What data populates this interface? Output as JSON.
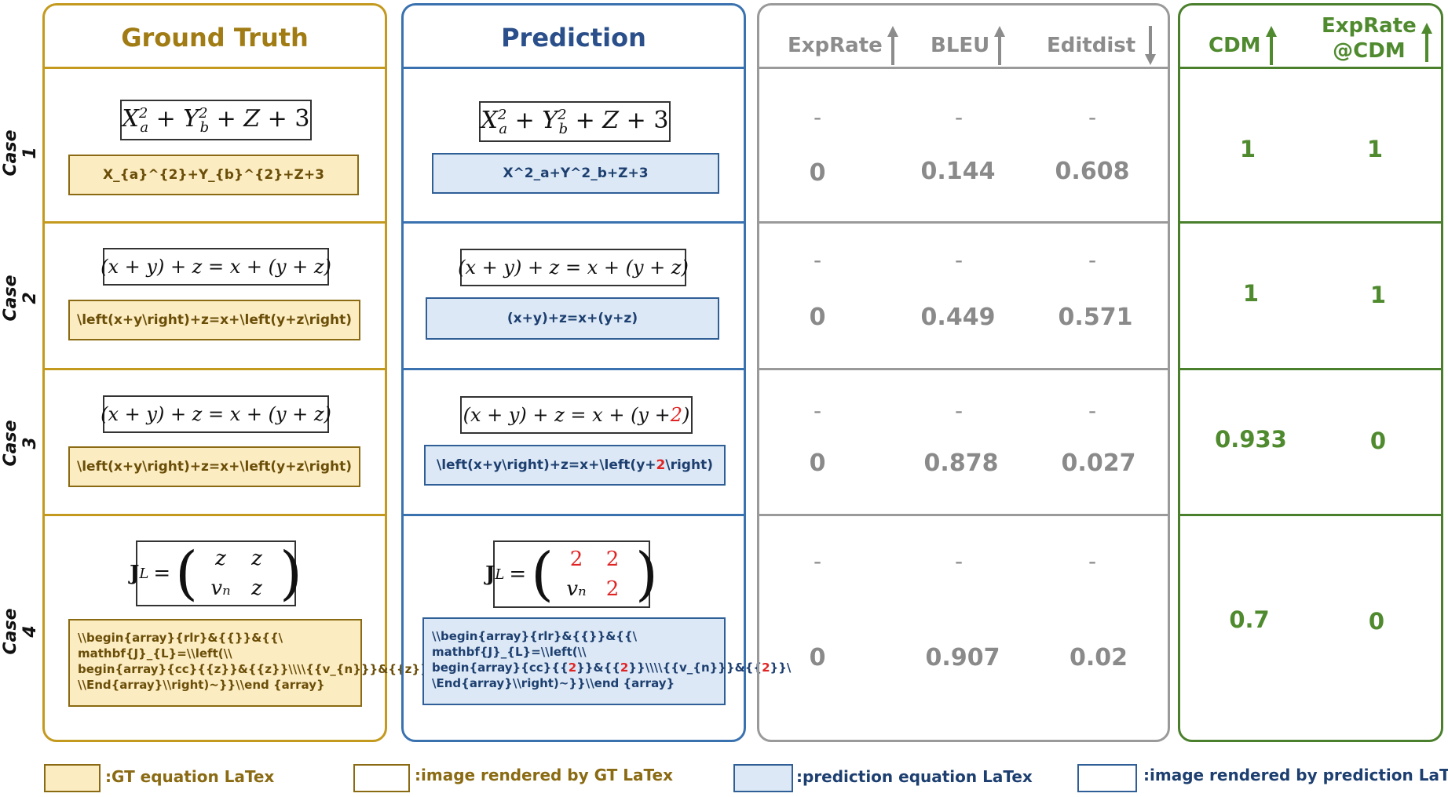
{
  "headers": {
    "ground_truth": "Ground Truth",
    "prediction": "Prediction",
    "exprate": "ExpRate",
    "bleu": "BLEU",
    "editdist": "Editdist",
    "cdm": "CDM",
    "exprate_cdm_1": "ExpRate",
    "exprate_cdm_2": "@CDM"
  },
  "case_labels": [
    "Case 1",
    "Case 2",
    "Case 3",
    "Case 4"
  ],
  "cases": [
    {
      "gt_render": "X²ₐ + Y²_b + Z + 3",
      "gt_latex": "X_{a}^{2}+Y_{b}^{2}+Z+3",
      "pred_render": "X²ₐ + Y²_b + Z + 3",
      "pred_latex": "X^2_a+Y^2_b+Z+3",
      "exprate": "0",
      "bleu": "0.144",
      "editdist": "0.608",
      "cdm": "1",
      "exprate_cdm": "1"
    },
    {
      "gt_render": "(x + y) + z = x + (y + z)",
      "gt_latex": "\\left(x+y\\right)+z=x+\\left(y+z\\right)",
      "pred_render": "(x + y) + z = x + (y + z)",
      "pred_latex": "(x+y)+z=x+(y+z)",
      "exprate": "0",
      "bleu": "0.449",
      "editdist": "0.571",
      "cdm": "1",
      "exprate_cdm": "1"
    },
    {
      "gt_render": "(x + y) + z = x + (y + z)",
      "gt_latex": "\\left(x+y\\right)+z=x+\\left(y+z\\right)",
      "pred_render_a": "(x + y) + z = x + (y + ",
      "pred_render_red": "2",
      "pred_render_b": ")",
      "pred_latex_a": "\\left(x+y\\right)+z=x+\\left(y+",
      "pred_latex_red": "2",
      "pred_latex_b": "\\right)",
      "exprate": "0",
      "bleu": "0.878",
      "editdist": "0.027",
      "cdm": "0.933",
      "exprate_cdm": "0"
    },
    {
      "gt_lhs": "J",
      "gt_sub": "L",
      "gt_matrix": [
        "z",
        "z",
        "vₙ",
        "z"
      ],
      "gt_latex_lines": [
        "\\\\begin{array}{rlr}&{{}}&{{\\",
        "mathbf{J}_{L}=\\\\left(\\\\",
        "begin{array}{cc}{{z}}&{{z}}\\\\\\\\{{v_{n}}}&{{z}}",
        "\\\\End{array}\\\\right)~}}\\\\end {array}"
      ],
      "pred_matrix": [
        "2",
        "2",
        "vₙ",
        "2"
      ],
      "pred_latex_l1": "\\\\begin{array}{rlr}&{{}}&{{\\",
      "pred_latex_l2": "mathbf{J}_{L}=\\\\left(\\\\",
      "pred_latex_l3a": "begin{array}{cc}{{",
      "pred_latex_l3b": "}}&{{",
      "pred_latex_l3c": "}}\\\\\\\\{{v_{n}}}&{{",
      "pred_latex_l3d": "}}\\",
      "pred_latex_red": "2",
      "pred_latex_l4": "\\End{array}\\\\right)~}}\\\\end {array}",
      "exprate": "0",
      "bleu": "0.907",
      "editdist": "0.02",
      "cdm": "0.7",
      "exprate_cdm": "0"
    }
  ],
  "dash": "-",
  "legend": {
    "gt_latex": ":GT equation LaTex",
    "gt_image": ":image rendered by GT LaTex",
    "pred_latex": ":prediction equation LaTex",
    "pred_image": ":image rendered by prediction LaTex"
  },
  "colors": {
    "gt": "#c49a1e",
    "pred": "#3a72b0",
    "metric": "#9a9a9a",
    "cdm": "#4a7f2c",
    "gt_fill": "#fcecc2",
    "pred_fill": "#dce8f5",
    "error": "#e02424"
  }
}
